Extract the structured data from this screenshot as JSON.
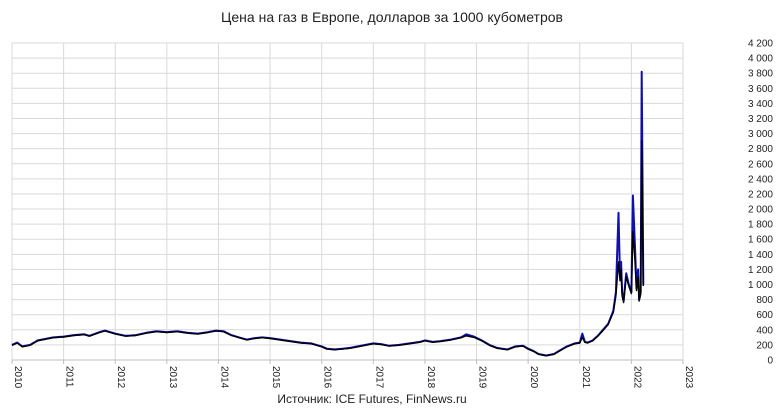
{
  "chart_data": {
    "type": "line",
    "title": "Цена на газ в Европе, долларов за 1000 кубометров",
    "source": "Источник: ICE Futures, FinNews.ru",
    "xlabel": "",
    "ylabel": "",
    "xlim": [
      2010,
      2023
    ],
    "ylim": [
      0,
      4200
    ],
    "x_ticks": [
      "2010",
      "2011",
      "2012",
      "2013",
      "2014",
      "2015",
      "2016",
      "2017",
      "2018",
      "2019",
      "2020",
      "2021",
      "2022",
      "2023"
    ],
    "y_ticks": [
      "0",
      "200",
      "400",
      "600",
      "800",
      "1 000",
      "1 200",
      "1 400",
      "1 600",
      "1 800",
      "2 000",
      "2 200",
      "2 400",
      "2 600",
      "2 800",
      "3 000",
      "3 200",
      "3 400",
      "3 600",
      "3 800",
      "4 000",
      "4 200"
    ],
    "grid": true,
    "legend": "none",
    "series": [
      {
        "color": "#1010b0",
        "x": [
          2010.0,
          2010.1,
          2010.2,
          2010.35,
          2010.5,
          2010.65,
          2010.8,
          2011.0,
          2011.2,
          2011.4,
          2011.5,
          2011.7,
          2011.8,
          2012.0,
          2012.2,
          2012.4,
          2012.6,
          2012.8,
          2013.0,
          2013.2,
          2013.4,
          2013.6,
          2013.8,
          2013.95,
          2014.1,
          2014.25,
          2014.4,
          2014.55,
          2014.7,
          2014.85,
          2015.0,
          2015.2,
          2015.4,
          2015.6,
          2015.8,
          2016.0,
          2016.1,
          2016.25,
          2016.4,
          2016.55,
          2016.7,
          2016.85,
          2017.0,
          2017.15,
          2017.3,
          2017.5,
          2017.7,
          2017.9,
          2018.0,
          2018.15,
          2018.3,
          2018.5,
          2018.7,
          2018.8,
          2018.95,
          2019.1,
          2019.25,
          2019.4,
          2019.5,
          2019.6,
          2019.75,
          2019.9,
          2020.0,
          2020.1,
          2020.2,
          2020.35,
          2020.5,
          2020.6,
          2020.75,
          2020.9,
          2021.0,
          2021.05,
          2021.1,
          2021.15,
          2021.25,
          2021.35,
          2021.45,
          2021.55,
          2021.65,
          2021.7,
          2021.75,
          2021.78,
          2021.8,
          2021.82,
          2021.85,
          2021.9,
          2021.95,
          2022.0,
          2022.03,
          2022.07,
          2022.1,
          2022.13,
          2022.15,
          2022.18,
          2022.2,
          2022.23
        ],
        "y": [
          200,
          230,
          180,
          200,
          260,
          280,
          300,
          310,
          330,
          340,
          320,
          370,
          390,
          350,
          320,
          330,
          360,
          380,
          370,
          380,
          360,
          350,
          370,
          390,
          380,
          330,
          300,
          270,
          290,
          300,
          290,
          270,
          250,
          230,
          220,
          180,
          150,
          140,
          150,
          160,
          180,
          200,
          220,
          210,
          190,
          200,
          220,
          240,
          260,
          240,
          250,
          270,
          300,
          340,
          310,
          260,
          200,
          160,
          150,
          140,
          180,
          190,
          150,
          120,
          80,
          60,
          80,
          120,
          180,
          220,
          230,
          350,
          240,
          230,
          260,
          320,
          400,
          480,
          650,
          900,
          1950,
          1100,
          1300,
          900,
          780,
          1150,
          1000,
          900,
          2180,
          1500,
          950,
          1200,
          800,
          900,
          3820,
          1000
        ]
      },
      {
        "color": "#000000",
        "x": [
          2010.0,
          2010.1,
          2010.2,
          2010.35,
          2010.5,
          2010.65,
          2010.8,
          2011.0,
          2011.2,
          2011.4,
          2011.5,
          2011.7,
          2011.8,
          2012.0,
          2012.2,
          2012.4,
          2012.6,
          2012.8,
          2013.0,
          2013.2,
          2013.4,
          2013.6,
          2013.8,
          2013.95,
          2014.1,
          2014.25,
          2014.4,
          2014.55,
          2014.7,
          2014.85,
          2015.0,
          2015.2,
          2015.4,
          2015.6,
          2015.8,
          2016.0,
          2016.1,
          2016.25,
          2016.4,
          2016.55,
          2016.7,
          2016.85,
          2017.0,
          2017.15,
          2017.3,
          2017.5,
          2017.7,
          2017.9,
          2018.0,
          2018.15,
          2018.3,
          2018.5,
          2018.7,
          2018.8,
          2018.95,
          2019.1,
          2019.25,
          2019.4,
          2019.5,
          2019.6,
          2019.75,
          2019.9,
          2020.0,
          2020.1,
          2020.2,
          2020.35,
          2020.5,
          2020.6,
          2020.75,
          2020.9,
          2021.0,
          2021.05,
          2021.1,
          2021.15,
          2021.25,
          2021.35,
          2021.45,
          2021.55,
          2021.65,
          2021.7,
          2021.75,
          2021.78,
          2021.8,
          2021.82,
          2021.85,
          2021.9,
          2021.95,
          2022.0,
          2022.03,
          2022.07,
          2022.1,
          2022.13,
          2022.15,
          2022.18,
          2022.2,
          2022.23
        ],
        "y": [
          195,
          225,
          175,
          195,
          255,
          275,
          295,
          305,
          325,
          335,
          315,
          365,
          385,
          345,
          315,
          325,
          355,
          375,
          365,
          375,
          355,
          345,
          365,
          385,
          375,
          325,
          295,
          265,
          285,
          295,
          285,
          265,
          245,
          225,
          215,
          175,
          145,
          135,
          145,
          155,
          175,
          195,
          215,
          205,
          185,
          195,
          215,
          235,
          255,
          235,
          245,
          265,
          295,
          320,
          300,
          255,
          195,
          155,
          145,
          135,
          175,
          185,
          145,
          115,
          75,
          55,
          75,
          115,
          175,
          215,
          225,
          300,
          235,
          225,
          255,
          315,
          390,
          470,
          630,
          850,
          1300,
          1050,
          1200,
          850,
          760,
          1100,
          980,
          880,
          1700,
          1300,
          920,
          1100,
          780,
          870,
          2900,
          980
        ]
      }
    ]
  }
}
